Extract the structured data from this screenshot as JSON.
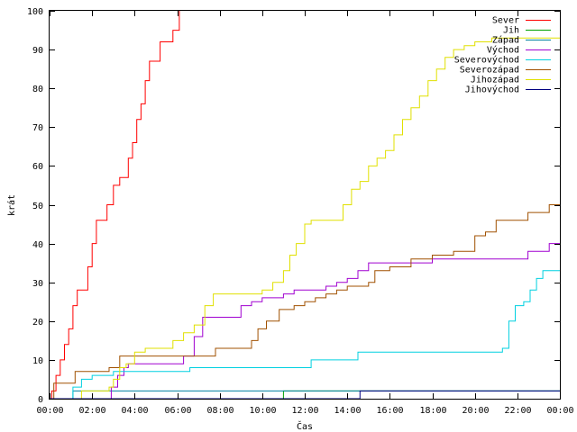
{
  "chart_data": {
    "type": "line",
    "xlabel": "Čas",
    "ylabel": "krát",
    "x_unit": "hours",
    "xlim": [
      0,
      24
    ],
    "ylim": [
      0,
      100
    ],
    "x_ticks": [
      {
        "value": 0,
        "label": "00:00"
      },
      {
        "value": 2,
        "label": "02:00"
      },
      {
        "value": 4,
        "label": "04:00"
      },
      {
        "value": 6,
        "label": "06:00"
      },
      {
        "value": 8,
        "label": "08:00"
      },
      {
        "value": 10,
        "label": "10:00"
      },
      {
        "value": 12,
        "label": "12:00"
      },
      {
        "value": 14,
        "label": "14:00"
      },
      {
        "value": 16,
        "label": "16:00"
      },
      {
        "value": 18,
        "label": "18:00"
      },
      {
        "value": 20,
        "label": "20:00"
      },
      {
        "value": 22,
        "label": "22:00"
      },
      {
        "value": 24,
        "label": "00:00"
      }
    ],
    "y_ticks": [
      0,
      10,
      20,
      30,
      40,
      50,
      60,
      70,
      80,
      90,
      100
    ],
    "grid": false,
    "legend_position": "top-right",
    "line_style": "step",
    "series": [
      {
        "name": "Sever",
        "color": "#ff0000",
        "points": [
          [
            0,
            0
          ],
          [
            0.1,
            2
          ],
          [
            0.3,
            6
          ],
          [
            0.5,
            10
          ],
          [
            0.7,
            14
          ],
          [
            0.9,
            18
          ],
          [
            1.1,
            24
          ],
          [
            1.3,
            28
          ],
          [
            1.6,
            28
          ],
          [
            1.8,
            34
          ],
          [
            2.0,
            40
          ],
          [
            2.2,
            46
          ],
          [
            2.5,
            46
          ],
          [
            2.7,
            50
          ],
          [
            3.0,
            55
          ],
          [
            3.3,
            57
          ],
          [
            3.5,
            57
          ],
          [
            3.7,
            62
          ],
          [
            3.9,
            66
          ],
          [
            4.1,
            72
          ],
          [
            4.3,
            76
          ],
          [
            4.5,
            82
          ],
          [
            4.7,
            87
          ],
          [
            5.0,
            87
          ],
          [
            5.2,
            92
          ],
          [
            5.5,
            92
          ],
          [
            5.8,
            95
          ],
          [
            6.1,
            100
          ]
        ]
      },
      {
        "name": "Jih",
        "color": "#00a000",
        "points": [
          [
            0,
            0
          ],
          [
            10.9,
            0
          ],
          [
            11.0,
            2
          ],
          [
            24,
            2
          ]
        ]
      },
      {
        "name": "Západ",
        "color": "#0080a0",
        "points": [
          [
            0,
            0
          ],
          [
            1.0,
            0
          ],
          [
            1.1,
            2
          ],
          [
            24,
            2
          ]
        ]
      },
      {
        "name": "Východ",
        "color": "#a000d0",
        "points": [
          [
            0,
            0
          ],
          [
            2.8,
            0
          ],
          [
            2.9,
            3
          ],
          [
            3.2,
            6
          ],
          [
            3.5,
            8
          ],
          [
            3.7,
            9
          ],
          [
            4.0,
            9
          ],
          [
            6.0,
            9
          ],
          [
            6.3,
            11
          ],
          [
            6.8,
            16
          ],
          [
            7.2,
            21
          ],
          [
            8.0,
            21
          ],
          [
            8.6,
            21
          ],
          [
            9.0,
            24
          ],
          [
            9.5,
            25
          ],
          [
            10.0,
            26
          ],
          [
            10.5,
            26
          ],
          [
            11.0,
            27
          ],
          [
            11.5,
            28
          ],
          [
            12.0,
            28
          ],
          [
            12.5,
            28
          ],
          [
            13.0,
            29
          ],
          [
            13.5,
            30
          ],
          [
            14.0,
            31
          ],
          [
            14.5,
            33
          ],
          [
            15.0,
            35
          ],
          [
            16.0,
            35
          ],
          [
            17.0,
            35
          ],
          [
            18.0,
            36
          ],
          [
            20.0,
            36
          ],
          [
            21.0,
            36
          ],
          [
            22.5,
            38
          ],
          [
            23.5,
            40
          ],
          [
            24,
            40
          ]
        ]
      },
      {
        "name": "Severovýchod",
        "color": "#00d0e0",
        "points": [
          [
            0,
            0
          ],
          [
            1.0,
            0
          ],
          [
            1.1,
            3
          ],
          [
            1.5,
            5
          ],
          [
            2.0,
            6
          ],
          [
            3.0,
            7
          ],
          [
            4.0,
            7
          ],
          [
            6.0,
            7
          ],
          [
            6.6,
            8
          ],
          [
            8.0,
            8
          ],
          [
            10.0,
            8
          ],
          [
            12.0,
            8
          ],
          [
            12.3,
            10
          ],
          [
            13.0,
            10
          ],
          [
            14.0,
            10
          ],
          [
            14.5,
            12
          ],
          [
            16.0,
            12
          ],
          [
            18.0,
            12
          ],
          [
            20.0,
            12
          ],
          [
            21.0,
            12
          ],
          [
            21.3,
            13
          ],
          [
            21.6,
            20
          ],
          [
            21.9,
            24
          ],
          [
            22.3,
            25
          ],
          [
            22.6,
            28
          ],
          [
            22.9,
            31
          ],
          [
            23.2,
            33
          ],
          [
            24,
            33
          ]
        ]
      },
      {
        "name": "Severozápad",
        "color": "#a05000",
        "points": [
          [
            0,
            0
          ],
          [
            0.2,
            4
          ],
          [
            0.8,
            4
          ],
          [
            1.2,
            7
          ],
          [
            2.0,
            7
          ],
          [
            2.8,
            8
          ],
          [
            3.3,
            11
          ],
          [
            4.0,
            11
          ],
          [
            6.0,
            11
          ],
          [
            7.8,
            13
          ],
          [
            9.0,
            13
          ],
          [
            9.5,
            15
          ],
          [
            9.8,
            18
          ],
          [
            10.2,
            20
          ],
          [
            10.8,
            23
          ],
          [
            11.5,
            24
          ],
          [
            12.0,
            25
          ],
          [
            12.5,
            26
          ],
          [
            13.0,
            27
          ],
          [
            13.5,
            28
          ],
          [
            14.0,
            29
          ],
          [
            14.5,
            29
          ],
          [
            15.0,
            30
          ],
          [
            15.3,
            33
          ],
          [
            16.0,
            34
          ],
          [
            17.0,
            36
          ],
          [
            18.0,
            37
          ],
          [
            19.0,
            38
          ],
          [
            19.5,
            38
          ],
          [
            20.0,
            42
          ],
          [
            20.5,
            43
          ],
          [
            21.0,
            46
          ],
          [
            22.0,
            46
          ],
          [
            22.5,
            48
          ],
          [
            23.5,
            50
          ],
          [
            24,
            50
          ]
        ]
      },
      {
        "name": "Jihozápad",
        "color": "#e0e000",
        "points": [
          [
            0,
            0
          ],
          [
            1.3,
            0
          ],
          [
            1.5,
            2
          ],
          [
            2.8,
            3
          ],
          [
            3.0,
            5
          ],
          [
            3.3,
            8
          ],
          [
            3.6,
            9
          ],
          [
            4.0,
            12
          ],
          [
            4.5,
            13
          ],
          [
            5.5,
            13
          ],
          [
            5.8,
            15
          ],
          [
            6.3,
            17
          ],
          [
            6.8,
            19
          ],
          [
            7.3,
            24
          ],
          [
            7.7,
            27
          ],
          [
            9.0,
            27
          ],
          [
            10.0,
            28
          ],
          [
            10.5,
            30
          ],
          [
            11.0,
            33
          ],
          [
            11.3,
            37
          ],
          [
            11.6,
            40
          ],
          [
            12.0,
            45
          ],
          [
            12.3,
            46
          ],
          [
            13.5,
            46
          ],
          [
            13.8,
            50
          ],
          [
            14.2,
            54
          ],
          [
            14.6,
            56
          ],
          [
            15.0,
            60
          ],
          [
            15.4,
            62
          ],
          [
            15.8,
            64
          ],
          [
            16.2,
            68
          ],
          [
            16.6,
            72
          ],
          [
            17.0,
            75
          ],
          [
            17.4,
            78
          ],
          [
            17.8,
            82
          ],
          [
            18.2,
            85
          ],
          [
            18.6,
            88
          ],
          [
            19.0,
            90
          ],
          [
            19.5,
            91
          ],
          [
            20.0,
            92
          ],
          [
            20.8,
            93
          ],
          [
            24,
            93
          ]
        ]
      },
      {
        "name": "Jihovýchod",
        "color": "#000080",
        "points": [
          [
            0,
            0
          ],
          [
            14.5,
            0
          ],
          [
            14.6,
            2
          ],
          [
            24,
            2
          ]
        ]
      }
    ]
  }
}
